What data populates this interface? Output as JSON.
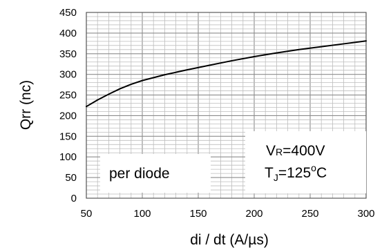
{
  "chart_data": {
    "type": "line",
    "xlabel": "di / dt (A/µs)",
    "ylabel": "Qrr  (nc)",
    "xlim": [
      50,
      300
    ],
    "ylim": [
      0,
      450
    ],
    "xticks": [
      50,
      100,
      150,
      200,
      250,
      300
    ],
    "yticks": [
      0,
      50,
      100,
      150,
      200,
      250,
      300,
      350,
      400,
      450
    ],
    "minor_x_step": 10,
    "minor_y_step": 10,
    "grid": true,
    "series": [
      {
        "color": "#000000",
        "x": [
          50,
          60,
          70,
          80,
          90,
          100,
          120,
          140,
          160,
          180,
          200,
          220,
          240,
          260,
          280,
          300
        ],
        "y": [
          222,
          238,
          252,
          265,
          276,
          285,
          299,
          311,
          322,
          333,
          343,
          352,
          360,
          367,
          374,
          381
        ]
      }
    ],
    "annotations": {
      "left_box": "per diode",
      "right_box": {
        "line1_main": "V",
        "line1_sub": "R",
        "line1_rest": "=400V",
        "line2_main": "T",
        "line2_sub": "J",
        "line2_eq": "=125",
        "line2_sup": "o",
        "line2_unit": "C"
      }
    }
  }
}
